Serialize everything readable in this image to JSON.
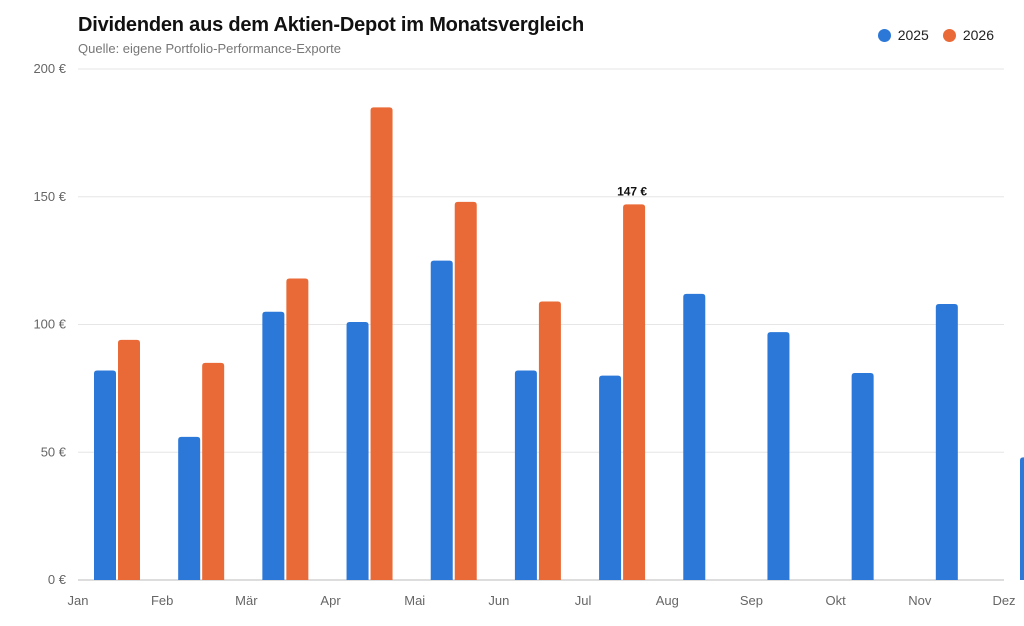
{
  "header": {
    "title": "Dividenden aus dem Aktien-Depot im Monatsvergleich",
    "subtitle": "Quelle: eigene Portfolio-Performance-Exporte"
  },
  "legend": [
    {
      "label": "2025",
      "color": "#2b78d8"
    },
    {
      "label": "2026",
      "color": "#e96a36"
    }
  ],
  "chart_data": {
    "type": "bar",
    "categories": [
      "Jan",
      "Feb",
      "Mär",
      "Apr",
      "Mai",
      "Jun",
      "Jul",
      "Aug",
      "Sep",
      "Okt",
      "Nov",
      "Dez"
    ],
    "series": [
      {
        "name": "2025",
        "color": "#2b78d8",
        "values": [
          82,
          56,
          105,
          101,
          125,
          82,
          80,
          112,
          97,
          81,
          108,
          48
        ]
      },
      {
        "name": "2026",
        "color": "#e96a36",
        "values": [
          94,
          85,
          118,
          185,
          148,
          109,
          147,
          null,
          null,
          null,
          null,
          null
        ]
      }
    ],
    "ylim": [
      0,
      200
    ],
    "yticks": [
      0,
      50,
      100,
      150,
      200
    ],
    "ytick_labels": [
      "0 €",
      "50 €",
      "100 €",
      "150 €",
      "200 €"
    ],
    "grid": true,
    "legend_position": "top-right",
    "annotations": [
      {
        "series": "2026",
        "category": "Jul",
        "text": "147 €"
      }
    ]
  }
}
